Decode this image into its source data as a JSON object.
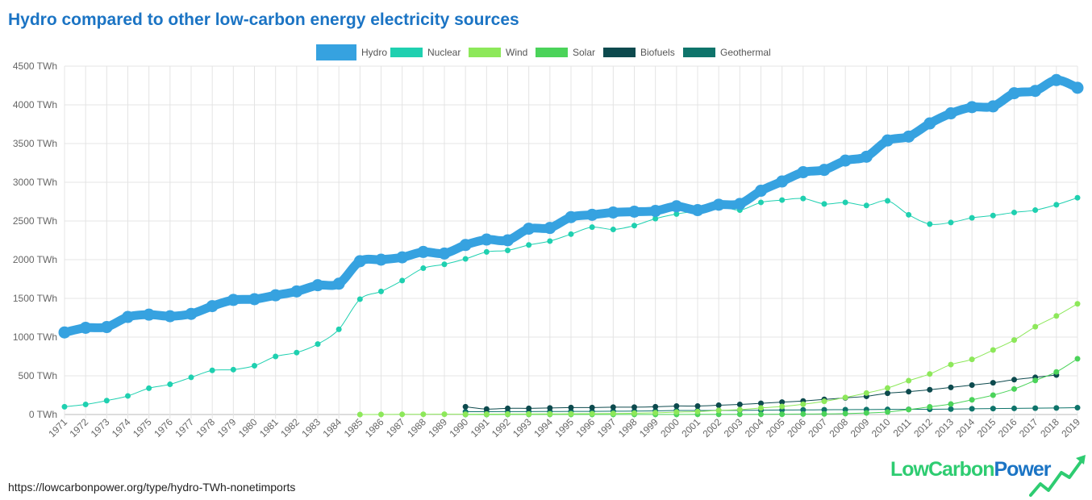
{
  "title": "Hydro compared to other low-carbon energy electricity sources",
  "source_url": "https://lowcarbonpower.org/type/hydro-TWh-nonetimports",
  "brand": {
    "part1": "LowCarbon",
    "part2": "Power"
  },
  "chart_data": {
    "type": "line",
    "title": "Hydro compared to other low-carbon energy electricity sources",
    "xlabel": "",
    "ylabel": "",
    "ylim": [
      0,
      4500
    ],
    "yticks": [
      "0 TWh",
      "500 TWh",
      "1000 TWh",
      "1500 TWh",
      "2000 TWh",
      "2500 TWh",
      "3000 TWh",
      "3500 TWh",
      "4000 TWh",
      "4500 TWh"
    ],
    "ytick_values": [
      0,
      500,
      1000,
      1500,
      2000,
      2500,
      3000,
      3500,
      4000,
      4500
    ],
    "grid": true,
    "legend_position": "top-center",
    "x": [
      1971,
      1972,
      1973,
      1974,
      1975,
      1976,
      1977,
      1978,
      1979,
      1980,
      1981,
      1982,
      1983,
      1984,
      1985,
      1986,
      1987,
      1988,
      1989,
      1990,
      1991,
      1992,
      1993,
      1994,
      1995,
      1996,
      1997,
      1998,
      1999,
      2000,
      2001,
      2002,
      2003,
      2004,
      2005,
      2006,
      2007,
      2008,
      2009,
      2010,
      2011,
      2012,
      2013,
      2014,
      2015,
      2016,
      2017,
      2018,
      2019
    ],
    "series": [
      {
        "name": "Hydro",
        "color": "#36a2e0",
        "values": [
          1060,
          1120,
          1130,
          1260,
          1290,
          1270,
          1300,
          1400,
          1480,
          1490,
          1540,
          1590,
          1670,
          1690,
          1980,
          2000,
          2030,
          2100,
          2080,
          2190,
          2260,
          2250,
          2400,
          2410,
          2550,
          2580,
          2610,
          2620,
          2630,
          2690,
          2640,
          2710,
          2720,
          2890,
          3010,
          3130,
          3160,
          3280,
          3330,
          3540,
          3590,
          3760,
          3890,
          3970,
          3980,
          4150,
          4180,
          4320,
          4220
        ]
      },
      {
        "name": "Nuclear",
        "color": "#1fd0b0",
        "values": [
          100,
          130,
          180,
          240,
          340,
          390,
          480,
          570,
          580,
          630,
          750,
          800,
          910,
          1100,
          1490,
          1590,
          1730,
          1890,
          1940,
          2010,
          2100,
          2120,
          2190,
          2240,
          2330,
          2420,
          2390,
          2440,
          2530,
          2590,
          2630,
          2690,
          2640,
          2740,
          2770,
          2790,
          2720,
          2740,
          2700,
          2760,
          2580,
          2460,
          2480,
          2540,
          2570,
          2610,
          2640,
          2710,
          2800
        ]
      },
      {
        "name": "Wind",
        "color": "#8de85a",
        "values": [
          null,
          null,
          null,
          null,
          null,
          null,
          null,
          null,
          null,
          null,
          null,
          null,
          null,
          null,
          0,
          1,
          2,
          3,
          4,
          4,
          5,
          6,
          7,
          8,
          9,
          11,
          13,
          17,
          22,
          31,
          38,
          53,
          63,
          85,
          104,
          133,
          170,
          220,
          277,
          342,
          437,
          524,
          645,
          712,
          833,
          962,
          1134,
          1273,
          1430
        ]
      },
      {
        "name": "Solar",
        "color": "#4bd35a",
        "values": [
          null,
          null,
          null,
          null,
          null,
          null,
          null,
          null,
          null,
          null,
          null,
          null,
          null,
          null,
          null,
          null,
          null,
          null,
          null,
          0,
          0,
          1,
          1,
          1,
          1,
          1,
          1,
          1,
          1,
          1,
          2,
          2,
          3,
          3,
          4,
          6,
          8,
          12,
          20,
          32,
          64,
          99,
          135,
          190,
          250,
          330,
          440,
          550,
          720
        ]
      },
      {
        "name": "Biofuels",
        "color": "#0d4a4e",
        "values": [
          null,
          null,
          null,
          null,
          null,
          null,
          null,
          null,
          null,
          null,
          null,
          null,
          null,
          null,
          null,
          null,
          null,
          null,
          null,
          100,
          70,
          80,
          80,
          85,
          90,
          90,
          95,
          95,
          100,
          110,
          110,
          120,
          130,
          145,
          160,
          175,
          195,
          215,
          235,
          275,
          295,
          320,
          350,
          380,
          410,
          450,
          480,
          510,
          null
        ]
      },
      {
        "name": "Geothermal",
        "color": "#0f746b",
        "values": [
          null,
          null,
          null,
          null,
          null,
          null,
          null,
          null,
          null,
          null,
          null,
          null,
          null,
          null,
          null,
          null,
          null,
          null,
          null,
          36,
          37,
          38,
          38,
          39,
          40,
          41,
          43,
          44,
          47,
          52,
          52,
          53,
          54,
          56,
          58,
          60,
          61,
          63,
          64,
          66,
          67,
          68,
          70,
          74,
          77,
          79,
          82,
          85,
          88
        ]
      }
    ]
  }
}
